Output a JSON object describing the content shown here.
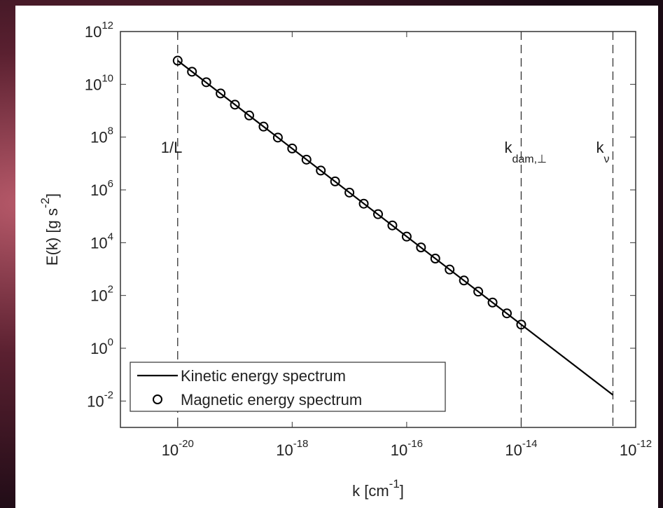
{
  "chart_data": {
    "type": "line",
    "xlabel": [
      "k [cm",
      "-1",
      "]"
    ],
    "ylabel": [
      "E(k) [g s",
      "-2",
      "]"
    ],
    "xscale": "log",
    "yscale": "log",
    "xlim": [
      1e-21,
      1e-12
    ],
    "ylim": [
      0.001,
      1000000000000.0
    ],
    "xticks": [
      {
        "value": 1e-20,
        "label": "10",
        "sup": "-20"
      },
      {
        "value": 1e-18,
        "label": "10",
        "sup": "-18"
      },
      {
        "value": 1e-16,
        "label": "10",
        "sup": "-16"
      },
      {
        "value": 1e-14,
        "label": "10",
        "sup": "-14"
      },
      {
        "value": 1e-12,
        "label": "10",
        "sup": "-12"
      }
    ],
    "yticks": [
      {
        "value": 0.01,
        "label": "10",
        "sup": "-2"
      },
      {
        "value": 1,
        "label": "10",
        "sup": "0"
      },
      {
        "value": 100.0,
        "label": "10",
        "sup": "2"
      },
      {
        "value": 10000.0,
        "label": "10",
        "sup": "4"
      },
      {
        "value": 1000000.0,
        "label": "10",
        "sup": "6"
      },
      {
        "value": 100000000.0,
        "label": "10",
        "sup": "8"
      },
      {
        "value": 10000000000.0,
        "label": "10",
        "sup": "10"
      },
      {
        "value": 1000000000000.0,
        "label": "10",
        "sup": "12"
      }
    ],
    "legend": "lower left",
    "series": [
      {
        "name": "Kinetic energy spectrum",
        "color": "#000000",
        "mode": "line",
        "x": [
          1e-20,
          4e-13
        ],
        "values": [
          79000000000.0,
          0.017
        ]
      },
      {
        "name": "Magnetic energy spectrum",
        "color": "#000000",
        "mode": "markers",
        "x": [
          1e-20,
          1.778e-20,
          3.162e-20,
          5.623e-20,
          1e-19,
          1.778e-19,
          3.162e-19,
          5.623e-19,
          1e-18,
          1.778e-18,
          3.162e-18,
          5.623e-18,
          1e-17,
          1.778e-17,
          3.162e-17,
          5.623e-17,
          1e-16,
          1.778e-16,
          3.162e-16,
          5.623e-16,
          1e-15,
          1.778e-15,
          3.162e-15,
          5.623e-15,
          1e-14
        ],
        "values": [
          79000000000.0,
          30000000000.0,
          12000000000.0,
          4500000000.0,
          1700000000.0,
          660000000.0,
          250000000.0,
          96000000.0,
          37000000.0,
          14000000.0,
          5400000.0,
          2100000.0,
          790000.0,
          300000.0,
          120000.0,
          45000.0,
          17000.0,
          6600.0,
          2500.0,
          960,
          370,
          140,
          54,
          21,
          7.9
        ]
      }
    ],
    "annotations": [
      {
        "text": "1/L",
        "x": 1e-20
      },
      {
        "text": "k",
        "sub": "dam,⊥",
        "x": 1e-14
      },
      {
        "text": "k",
        "sub": "ν",
        "x": 4e-13
      }
    ]
  }
}
